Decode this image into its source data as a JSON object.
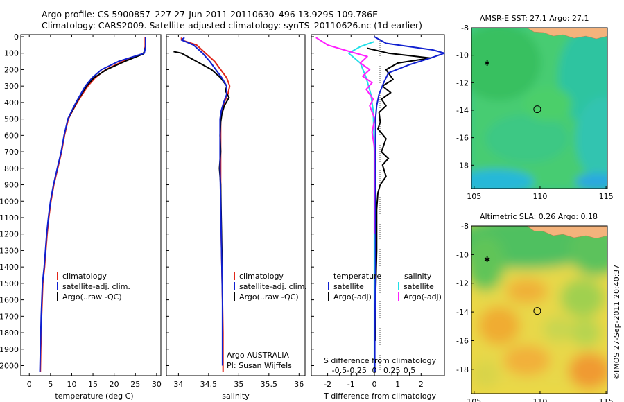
{
  "header": {
    "line1": "Argo profile: CS 5900857_227 27-Jun-2011 20110630_496 13.929S 109.786E",
    "line2": "Climatology: CARS2009. Satellite-adjusted climatology: synTS_20110626.nc (1d earlier)"
  },
  "side_stamp": "©IMOS 27-Sep-2011 20:40:37",
  "colors": {
    "climatology": "#e0261a",
    "satellite": "#1020d0",
    "argo": "#000000",
    "sal_satellite": "#20e0e8",
    "sal_argo": "#ff20ff"
  },
  "chart_data": [
    {
      "type": "line",
      "xlabel": "temperature (deg C)",
      "ylabel": "",
      "xlim": [
        -2,
        31
      ],
      "ylim": [
        2060,
        0
      ],
      "xticks": [
        0,
        5,
        10,
        15,
        20,
        25,
        30
      ],
      "yticks": [
        0,
        100,
        200,
        300,
        400,
        500,
        600,
        700,
        800,
        900,
        1000,
        1100,
        1200,
        1300,
        1400,
        1500,
        1600,
        1700,
        1800,
        1900,
        2000
      ],
      "legend": [
        "climatology",
        "satellite-adj. clim.",
        "Argo(..raw -QC)"
      ],
      "series": [
        {
          "name": "climatology",
          "x": [
            27.3,
            27.3,
            27.0,
            22,
            18,
            15.5,
            13.8,
            12.5,
            11.3,
            10.2,
            9.2,
            8.3,
            7.6,
            6.7,
            5.8,
            5.1,
            4.6,
            4.2,
            3.9,
            3.6,
            3.2,
            2.9,
            2.7,
            2.6
          ],
          "y": [
            0,
            60,
            100,
            150,
            200,
            250,
            300,
            350,
            400,
            450,
            500,
            600,
            700,
            800,
            900,
            1000,
            1100,
            1200,
            1300,
            1400,
            1500,
            1700,
            1900,
            2040
          ]
        },
        {
          "name": "satellite-adj. clim.",
          "x": [
            27.4,
            27.4,
            27.1,
            21,
            17,
            14.8,
            13.2,
            12.1,
            11.0,
            10.0,
            9.1,
            8.2,
            7.5,
            6.6,
            5.7,
            5.0,
            4.5,
            4.1,
            3.8,
            3.5,
            3.1,
            2.8,
            2.6,
            2.5
          ],
          "y": [
            0,
            60,
            100,
            150,
            200,
            250,
            300,
            350,
            400,
            450,
            500,
            600,
            700,
            800,
            900,
            1000,
            1100,
            1200,
            1300,
            1400,
            1500,
            1700,
            1900,
            2040
          ]
        },
        {
          "name": "Argo(..raw -QC)",
          "x": [
            27.2,
            27.1,
            26.8,
            22.5,
            18.2,
            15.2,
            13.5,
            12.3,
            11.1,
            10.1,
            9.1
          ],
          "y": [
            70,
            90,
            105,
            150,
            200,
            250,
            300,
            350,
            400,
            450,
            500
          ]
        }
      ]
    },
    {
      "type": "line",
      "xlabel": "salinity",
      "ylabel": "",
      "xlim": [
        33.8,
        36.1
      ],
      "ylim": [
        2060,
        0
      ],
      "xticks": [
        34,
        34.5,
        35,
        35.5,
        36
      ],
      "legend": [
        "climatology",
        "satellite-adj. clim.",
        "Argo(..raw -QC)"
      ],
      "annotation": [
        "Argo AUSTRALIA",
        "PI: Susan Wijffels"
      ],
      "series": [
        {
          "name": "climatology",
          "x": [
            34.05,
            34.05,
            34.3,
            34.45,
            34.6,
            34.7,
            34.8,
            34.85,
            34.82,
            34.76,
            34.72,
            34.7,
            34.7,
            34.7,
            34.7,
            34.71,
            34.72,
            34.73,
            34.74,
            34.74
          ],
          "y": [
            5,
            20,
            50,
            100,
            150,
            200,
            250,
            300,
            350,
            400,
            450,
            500,
            600,
            800,
            1000,
            1200,
            1400,
            1600,
            1800,
            2040
          ]
        },
        {
          "name": "satellite-adj. clim.",
          "x": [
            34.1,
            34.05,
            34.25,
            34.4,
            34.52,
            34.62,
            34.72,
            34.8,
            34.8,
            34.75,
            34.71,
            34.69,
            34.69,
            34.69,
            34.7,
            34.71,
            34.72,
            34.73,
            34.73,
            34.73
          ],
          "y": [
            5,
            20,
            50,
            100,
            150,
            200,
            250,
            300,
            350,
            400,
            450,
            500,
            600,
            800,
            1000,
            1200,
            1400,
            1600,
            1800,
            2000
          ]
        },
        {
          "name": "Argo(..raw -QC)",
          "x": [
            33.92,
            34.05,
            34.3,
            34.55,
            34.7,
            34.8,
            34.78,
            34.84,
            34.76,
            34.72,
            34.7,
            34.69,
            34.7,
            34.68,
            34.7,
            34.71,
            34.72,
            34.73
          ],
          "y": [
            90,
            100,
            150,
            200,
            250,
            300,
            330,
            370,
            420,
            470,
            520,
            600,
            700,
            800,
            900,
            1100,
            1300,
            1500
          ]
        }
      ]
    },
    {
      "type": "line",
      "xlabel": "T difference from climatology",
      "x2label": "S difference from climatology",
      "xlim": [
        -2.7,
        3.0
      ],
      "ylim": [
        2060,
        0
      ],
      "xticks": [
        -2,
        -1,
        0,
        1,
        2
      ],
      "x2ticks": [
        "-0.5",
        "-0.25",
        "0",
        "0.25",
        "0.5"
      ],
      "legend_titles": [
        "temperature",
        "salinity"
      ],
      "legend": [
        "satellite",
        "Argo(-adj)",
        "satellite",
        "Argo(-adj)"
      ],
      "series": [
        {
          "name": "satellite",
          "x": [
            0,
            0.5,
            2.5,
            3.0,
            2.4,
            1.5,
            0.6,
            0.4,
            0.2,
            0.1,
            0.05,
            0.05,
            0.05,
            0.05,
            0.02,
            0.02
          ],
          "y": [
            0,
            40,
            80,
            100,
            130,
            170,
            220,
            280,
            350,
            420,
            500,
            700,
            1000,
            1400,
            1800,
            2040
          ]
        },
        {
          "name": "Argo(-adj)",
          "x": [
            -0.3,
            0.6,
            2.4,
            1.0,
            0.5,
            0.8,
            0.35,
            0.7,
            0.3,
            0.5,
            0.2,
            0.25,
            0.15,
            0.5,
            0.3,
            0.6,
            0.35,
            0.5,
            0.25,
            0.15,
            0.1,
            0.1,
            0.05,
            0.05
          ],
          "y": [
            70,
            100,
            130,
            160,
            200,
            260,
            300,
            340,
            380,
            420,
            460,
            520,
            560,
            620,
            700,
            740,
            780,
            850,
            900,
            950,
            1050,
            1300,
            1600,
            1850
          ]
        },
        {
          "name": "sat S",
          "x": [
            0,
            -0.6,
            -1.1,
            -0.6,
            -0.35,
            -0.15,
            -0.05,
            0,
            0,
            0
          ],
          "y": [
            30,
            60,
            100,
            160,
            250,
            350,
            450,
            700,
            1200,
            2040
          ]
        },
        {
          "name": "Argo S",
          "x": [
            -2.5,
            -2.0,
            -1.3,
            -0.3,
            -0.6,
            -0.2,
            -0.5,
            -0.1,
            -0.35,
            -0.05,
            -0.2,
            0.02,
            -0.1,
            0.03,
            0.02,
            0.02
          ],
          "y": [
            5,
            50,
            80,
            120,
            160,
            200,
            240,
            280,
            320,
            380,
            420,
            500,
            580,
            700,
            900,
            1200
          ]
        }
      ]
    },
    {
      "type": "heatmap",
      "title": "AMSR-E SST: 27.1 Argo: 27.1",
      "xlim": [
        104.8,
        115.1
      ],
      "ylim": [
        -19.7,
        -8
      ],
      "xticks": [
        105,
        110,
        115
      ],
      "yticks": [
        -8,
        -10,
        -12,
        -14,
        -16,
        -18
      ],
      "argo_point": [
        109.786,
        -13.929
      ]
    },
    {
      "type": "heatmap",
      "title": "Altimetric SLA: 0.26 Argo: 0.18",
      "xlim": [
        104.8,
        115.1
      ],
      "ylim": [
        -19.7,
        -8
      ],
      "xticks": [
        105,
        110,
        115
      ],
      "yticks": [
        -8,
        -10,
        -12,
        -14,
        -16,
        -18
      ],
      "argo_point": [
        109.786,
        -13.929
      ]
    }
  ]
}
